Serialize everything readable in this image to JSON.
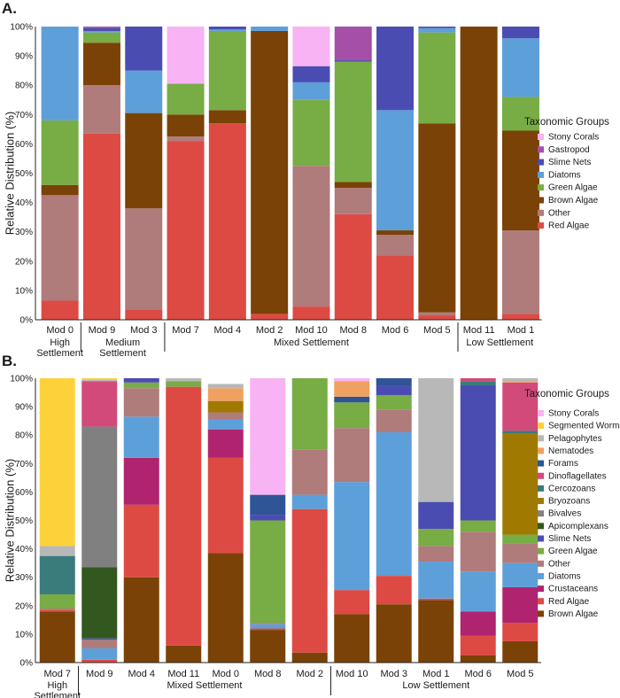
{
  "colors": {
    "Stony Corals": "#f7b3f3",
    "Gastropod": "#a54fa8",
    "Slime Nets": "#4b4cb2",
    "Diatoms": "#5d9fd9",
    "Green Algae": "#78ac45",
    "Brown Algae": "#7a4206",
    "Brown Algae B": "#7f4a1c",
    "Other": "#b07b7b",
    "Red Algae": "#dd4a44",
    "Segmented Worms": "#fdd13a",
    "Pelagophytes": "#b8b8b8",
    "Nematodes": "#f0a060",
    "Forams": "#2f5597",
    "Dinoflagellates": "#d24a7a",
    "Cercozoans": "#3a7b7b",
    "Bryozoans": "#a07a00",
    "Bivalves": "#808080",
    "Apicomplexans": "#33581f",
    "Crustaceans": "#b0246f"
  },
  "chart_data": [
    {
      "type": "bar",
      "stacked": true,
      "panel": "A.",
      "ylabel": "Relative Distribution (%)",
      "ylim": [
        0,
        100
      ],
      "yticks": [
        "0%",
        "10%",
        "20%",
        "30%",
        "40%",
        "50%",
        "60%",
        "70%",
        "80%",
        "90%",
        "100%"
      ],
      "legend_title": "Taxonomic Groups",
      "legend": [
        "Stony Corals",
        "Gastropod",
        "Slime Nets",
        "Diatoms",
        "Green Algae",
        "Brown Algae",
        "Other",
        "Red Algae"
      ],
      "categories": [
        "Mod 0",
        "Mod 9",
        "Mod 3",
        "Mod 7",
        "Mod 4",
        "Mod 2",
        "Mod 10",
        "Mod 8",
        "Mod 6",
        "Mod 5",
        "Mod 11",
        "Mod 1"
      ],
      "groups": [
        {
          "label": [
            "High",
            "Settlement"
          ],
          "from": 0,
          "to": 0
        },
        {
          "label": [
            "Medium",
            "Settlement"
          ],
          "from": 1,
          "to": 2
        },
        {
          "label": [
            "Mixed Settlement"
          ],
          "from": 3,
          "to": 9
        },
        {
          "label": [
            "Low Settlement"
          ],
          "from": 10,
          "to": 11
        }
      ],
      "series": [
        {
          "name": "Red Algae",
          "values": [
            6.5,
            63.5,
            3.5,
            61,
            67,
            2,
            4.5,
            36,
            22,
            1.5,
            0,
            2
          ]
        },
        {
          "name": "Other",
          "values": [
            36,
            16.5,
            34.5,
            1.5,
            0,
            0,
            48,
            9,
            7,
            1,
            0,
            28.5
          ]
        },
        {
          "name": "Brown Algae",
          "values": [
            3.5,
            14.5,
            32.5,
            7.5,
            4.5,
            96.5,
            0,
            2,
            1.5,
            64.5,
            100,
            34
          ]
        },
        {
          "name": "Green Algae",
          "values": [
            22,
            3.5,
            0,
            10.5,
            27,
            0,
            22.5,
            41,
            0,
            31,
            0,
            11.5
          ]
        },
        {
          "name": "Diatoms",
          "values": [
            32,
            0.5,
            14.5,
            0,
            0.5,
            1.5,
            6,
            0,
            41,
            1.5,
            0,
            20
          ]
        },
        {
          "name": "Slime Nets",
          "values": [
            0,
            1,
            15,
            0,
            1,
            0,
            5.5,
            0.5,
            28.5,
            0.5,
            0,
            4
          ]
        },
        {
          "name": "Gastropod",
          "values": [
            0,
            0.5,
            0,
            0,
            0,
            0,
            0,
            11.5,
            0,
            0,
            0,
            0
          ]
        },
        {
          "name": "Stony Corals",
          "values": [
            0,
            0,
            0,
            19.5,
            0,
            0,
            13.5,
            0,
            0,
            0,
            0,
            0
          ]
        }
      ]
    },
    {
      "type": "bar",
      "stacked": true,
      "panel": "B.",
      "ylabel": "Relative Distribution (%)",
      "ylim": [
        0,
        100
      ],
      "yticks": [
        "0%",
        "10%",
        "20%",
        "30%",
        "40%",
        "50%",
        "60%",
        "70%",
        "80%",
        "90%",
        "100%"
      ],
      "legend_title": "Taxonomic Groups",
      "legend": [
        "Stony Corals",
        "Segmented Worms",
        "Pelagophytes",
        "Nematodes",
        "Forams",
        "Dinoflagellates",
        "Cercozoans",
        "Bryozoans",
        "Bivalves",
        "Apicomplexans",
        "Slime Nets",
        "Green Algae",
        "Other",
        "Diatoms",
        "Crustaceans",
        "Red Algae",
        "Brown Algae"
      ],
      "categories": [
        "Mod 7",
        "Mod 9",
        "Mod 4",
        "Mod 11",
        "Mod 0",
        "Mod 8",
        "Mod 2",
        "Mod 10",
        "Mod 3",
        "Mod 1",
        "Mod 6",
        "Mod 5"
      ],
      "groups": [
        {
          "label": [
            "High",
            "Settlement"
          ],
          "from": 0,
          "to": 0
        },
        {
          "label": [
            "Mixed Settlement"
          ],
          "from": 1,
          "to": 6
        },
        {
          "label": [
            "Low Settlement"
          ],
          "from": 7,
          "to": 11
        }
      ],
      "series": [
        {
          "name": "Brown Algae",
          "values": [
            18,
            0,
            30,
            6,
            38.5,
            11.5,
            3.5,
            17,
            20.5,
            22,
            2.5,
            7.5
          ]
        },
        {
          "name": "Red Algae",
          "values": [
            0.5,
            1,
            25.5,
            91,
            33.5,
            0.5,
            50.5,
            8.5,
            10,
            0.5,
            7,
            6.5
          ]
        },
        {
          "name": "Crustaceans",
          "values": [
            0,
            0,
            16.5,
            0,
            10,
            0,
            0,
            0,
            0,
            0,
            8.5,
            12.5
          ]
        },
        {
          "name": "Diatoms",
          "values": [
            0,
            4,
            14.5,
            0,
            3.5,
            1.5,
            5,
            38,
            50.5,
            13,
            14,
            8.5
          ]
        },
        {
          "name": "Other",
          "values": [
            0.5,
            3,
            10,
            0,
            2.5,
            0.5,
            16,
            19,
            8,
            5.5,
            14,
            7
          ]
        },
        {
          "name": "Green Algae",
          "values": [
            5,
            0,
            2,
            2,
            0,
            36,
            25,
            9,
            5,
            6,
            4,
            3
          ]
        },
        {
          "name": "Slime Nets",
          "values": [
            0,
            0.5,
            1.5,
            0,
            0,
            2,
            0,
            0,
            3.5,
            9.5,
            47.5,
            0
          ]
        },
        {
          "name": "Apicomplexans",
          "values": [
            0,
            25,
            0,
            0,
            0,
            0,
            0,
            0,
            0,
            0,
            0,
            0
          ]
        },
        {
          "name": "Bivalves",
          "values": [
            0,
            49.5,
            0,
            0,
            0,
            0,
            0,
            0,
            0,
            0,
            0,
            0
          ]
        },
        {
          "name": "Bryozoans",
          "values": [
            0,
            0,
            0,
            0,
            4,
            0,
            0,
            0,
            0,
            0,
            0,
            35.5
          ]
        },
        {
          "name": "Cercozoans",
          "values": [
            13.5,
            0,
            0,
            0,
            0,
            0,
            0,
            0,
            0,
            0,
            1.5,
            1
          ]
        },
        {
          "name": "Dinoflagellates",
          "values": [
            0,
            16,
            0,
            0,
            0,
            0,
            0,
            0,
            0,
            0,
            1,
            17
          ]
        },
        {
          "name": "Forams",
          "values": [
            0,
            0,
            0,
            0,
            0,
            7,
            0,
            2,
            2.5,
            0,
            0,
            0
          ]
        },
        {
          "name": "Nematodes",
          "values": [
            0,
            0,
            0,
            0,
            4.5,
            0,
            0,
            5.5,
            0,
            0,
            0,
            0.5
          ]
        },
        {
          "name": "Pelagophytes",
          "values": [
            3.5,
            0.5,
            0,
            1,
            1.5,
            0,
            0,
            0,
            0,
            43.5,
            0,
            1
          ]
        },
        {
          "name": "Segmented Worms",
          "values": [
            59,
            0.5,
            0,
            0,
            0,
            0,
            0,
            0,
            0,
            0,
            0,
            0
          ]
        },
        {
          "name": "Stony Corals",
          "values": [
            0,
            0,
            0,
            0,
            0,
            41,
            0,
            1,
            0,
            0,
            0,
            0
          ]
        }
      ]
    }
  ]
}
